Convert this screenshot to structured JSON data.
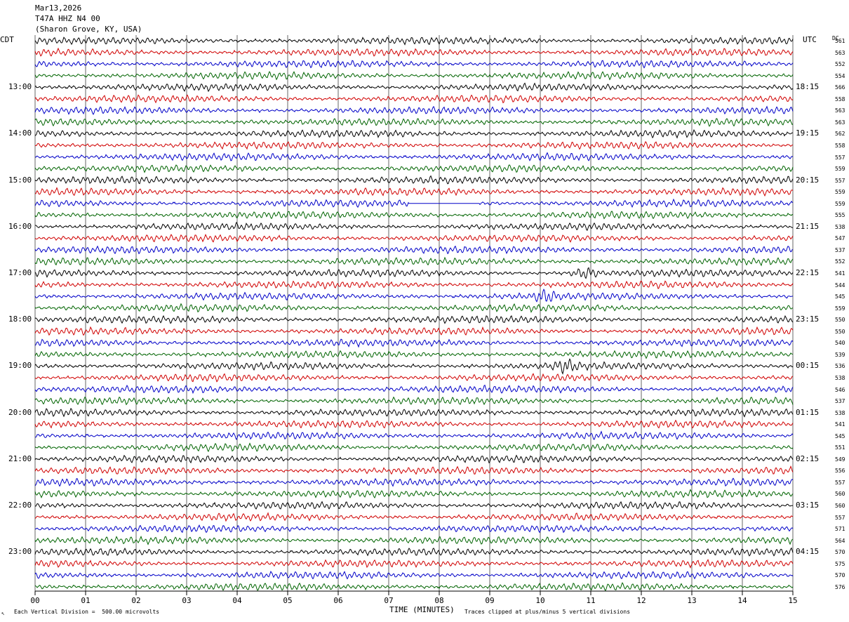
{
  "header": {
    "date": "Mar13,2026",
    "station": "T47A HHZ N4 00",
    "location": "(Sharon Grove, KY, USA)"
  },
  "axis": {
    "left_tz": "CDT",
    "right_tz": "UTC",
    "dc_label": "DC",
    "xlabel": "TIME (MINUTES)",
    "x_ticks": [
      "00",
      "01",
      "02",
      "03",
      "04",
      "05",
      "06",
      "07",
      "08",
      "09",
      "10",
      "11",
      "12",
      "13",
      "14",
      "15"
    ]
  },
  "footer": {
    "scale_marker": "↖",
    "scale_note": "Each Vertical Division =  500.00 microvolts",
    "clip_note": "Traces clipped at plus/minus 5 vertical divisions"
  },
  "colors": {
    "trace_cycle": [
      "#000000",
      "#d00000",
      "#0000c8",
      "#006400"
    ],
    "grid": "#000000"
  },
  "chart_data": {
    "type": "line",
    "title": "Mar13,2026",
    "xlabel": "TIME (MINUTES)",
    "xlim": [
      0,
      15
    ],
    "trace_minutes": 15,
    "traces_per_hour": 4,
    "left_hour_labels": [
      "13:00",
      "14:00",
      "15:00",
      "16:00",
      "17:00",
      "18:00",
      "19:00",
      "20:00",
      "21:00",
      "22:00",
      "23:00"
    ],
    "right_hour_labels": [
      "18:15",
      "19:15",
      "20:15",
      "21:15",
      "22:15",
      "23:15",
      "00:15",
      "01:15",
      "02:15",
      "03:15",
      "04:15"
    ],
    "dc_offsets": [
      561,
      563,
      552,
      554,
      566,
      558,
      563,
      563,
      562,
      558,
      557,
      559,
      557,
      559,
      559,
      555,
      538,
      547,
      537,
      552,
      541,
      544,
      545,
      559,
      550,
      550,
      540,
      539,
      536,
      538,
      546,
      537,
      538,
      541,
      545,
      551,
      549,
      556,
      557,
      560,
      560,
      557,
      571,
      564,
      570,
      575,
      570,
      576
    ],
    "events": [
      {
        "trace": 14,
        "description": "flat segment",
        "from_min": 7.4,
        "to_min": 8.8
      },
      {
        "trace": 20,
        "description": "burst",
        "at_min": 10.9
      },
      {
        "trace": 22,
        "description": "burst",
        "at_min": 10.1
      },
      {
        "trace": 28,
        "description": "burst",
        "at_min": 10.5
      }
    ]
  }
}
